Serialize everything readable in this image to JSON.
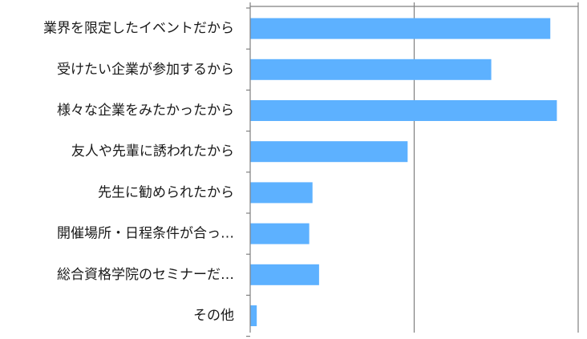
{
  "chart_data": {
    "type": "bar",
    "orientation": "horizontal",
    "title": "",
    "xlabel": "",
    "ylabel": "",
    "categories": [
      "業界を限定したイベントだから",
      "受けたい企業が参加するから",
      "様々な企業をみたかったから",
      "友人や先輩に誘われたから",
      "先生に勧められたから",
      "開催場所・日程条件が合っ…",
      "総合資格学院のセミナーだ…",
      "その他"
    ],
    "values": [
      18.3,
      14.7,
      18.7,
      9.6,
      3.8,
      3.6,
      4.2,
      0.4
    ],
    "xlim": [
      0,
      20
    ],
    "x_gridlines": [
      10,
      20
    ],
    "tick_labels_visible": false,
    "grid": true,
    "legend": "none",
    "colors": {
      "bar": "#5db1ff",
      "axis": "#808080",
      "grid": "#808080",
      "label": "#1a1a1a"
    }
  }
}
